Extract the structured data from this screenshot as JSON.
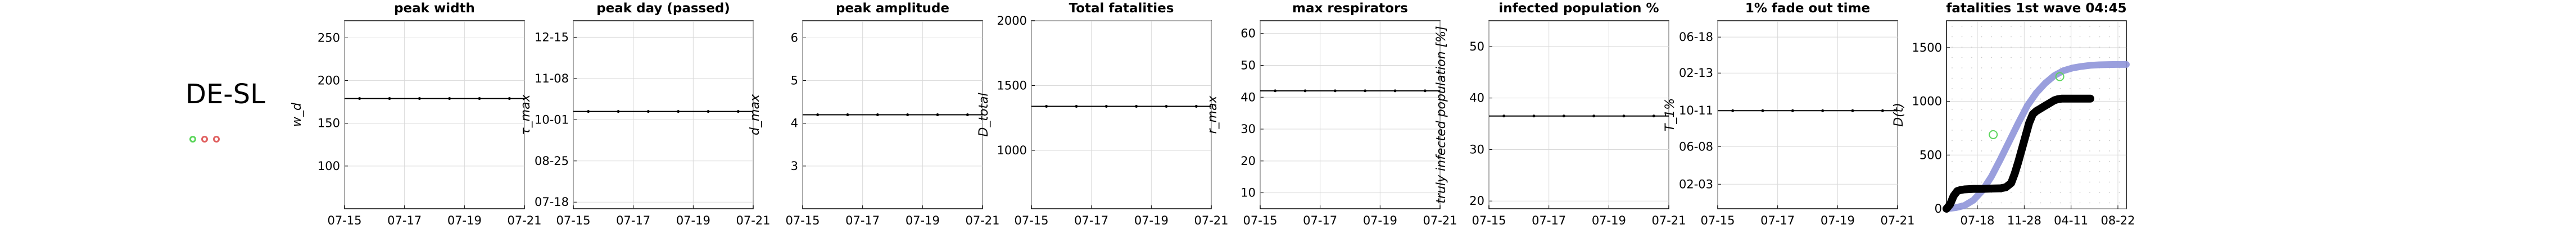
{
  "region": "DE-SL",
  "status_dots": [
    {
      "color": "#5cd65c"
    },
    {
      "color": "#e06060"
    },
    {
      "color": "#e06060"
    }
  ],
  "chart_data": [
    {
      "type": "line",
      "title": "peak width",
      "ylabel": "w_d",
      "x": [
        "07-16",
        "07-17",
        "07-18",
        "07-19",
        "07-20",
        "07-21"
      ],
      "y": [
        179,
        179,
        179,
        179,
        179,
        179
      ],
      "xticks": [
        "07-15",
        "07-17",
        "07-19",
        "07-21"
      ],
      "yticks": [
        {
          "v": 100,
          "label": "100"
        },
        {
          "v": 150,
          "label": "150"
        },
        {
          "v": 200,
          "label": "200"
        },
        {
          "v": 250,
          "label": "250"
        }
      ],
      "ylim": [
        50,
        270
      ]
    },
    {
      "type": "line",
      "title": "peak day (passed)",
      "ylabel": "τ_max",
      "x": [
        "07-16",
        "07-17",
        "07-18",
        "07-19",
        "07-20",
        "07-21"
      ],
      "y": [
        0.55,
        0.55,
        0.55,
        0.55,
        0.55,
        0.55
      ],
      "xticks": [
        "07-15",
        "07-17",
        "07-19",
        "07-21"
      ],
      "yticks": [
        {
          "v": 0,
          "label": "07-18"
        },
        {
          "v": 0.25,
          "label": "08-25"
        },
        {
          "v": 0.5,
          "label": "10-01"
        },
        {
          "v": 0.75,
          "label": "11-08"
        },
        {
          "v": 1,
          "label": "12-15"
        }
      ],
      "ylim": [
        -0.04,
        1.1
      ]
    },
    {
      "type": "line",
      "title": "peak amplitude",
      "ylabel": "d_max",
      "x": [
        "07-16",
        "07-17",
        "07-18",
        "07-19",
        "07-20",
        "07-21"
      ],
      "y": [
        4.2,
        4.2,
        4.2,
        4.2,
        4.2,
        4.2
      ],
      "xticks": [
        "07-15",
        "07-17",
        "07-19",
        "07-21"
      ],
      "yticks": [
        {
          "v": 3,
          "label": "3"
        },
        {
          "v": 4,
          "label": "4"
        },
        {
          "v": 5,
          "label": "5"
        },
        {
          "v": 6,
          "label": "6"
        }
      ],
      "ylim": [
        2,
        6.4
      ]
    },
    {
      "type": "line",
      "title": "Total fatalities",
      "ylabel": "D_total",
      "x": [
        "07-16",
        "07-17",
        "07-18",
        "07-19",
        "07-20",
        "07-21"
      ],
      "y": [
        1340,
        1340,
        1340,
        1340,
        1340,
        1340
      ],
      "xticks": [
        "07-15",
        "07-17",
        "07-19",
        "07-21"
      ],
      "yticks": [
        {
          "v": 1000,
          "label": "1000"
        },
        {
          "v": 1500,
          "label": "1500"
        },
        {
          "v": 2000,
          "label": "2000"
        }
      ],
      "ylim": [
        550,
        2000
      ]
    },
    {
      "type": "line",
      "title": "max respirators",
      "ylabel": "r_max",
      "x": [
        "07-16",
        "07-17",
        "07-18",
        "07-19",
        "07-20",
        "07-21"
      ],
      "y": [
        42,
        42,
        42,
        42,
        42,
        42
      ],
      "xticks": [
        "07-15",
        "07-17",
        "07-19",
        "07-21"
      ],
      "yticks": [
        {
          "v": 10,
          "label": "10"
        },
        {
          "v": 20,
          "label": "20"
        },
        {
          "v": 30,
          "label": "30"
        },
        {
          "v": 40,
          "label": "40"
        },
        {
          "v": 50,
          "label": "50"
        },
        {
          "v": 60,
          "label": "60"
        }
      ],
      "ylim": [
        5,
        64
      ]
    },
    {
      "type": "line",
      "title": "infected population %",
      "ylabel": "truly infected population [%]",
      "x": [
        "07-16",
        "07-17",
        "07-18",
        "07-19",
        "07-20",
        "07-21"
      ],
      "y": [
        36.5,
        36.5,
        36.5,
        36.5,
        36.5,
        36.5
      ],
      "xticks": [
        "07-15",
        "07-17",
        "07-19",
        "07-21"
      ],
      "yticks": [
        {
          "v": 20,
          "label": "20"
        },
        {
          "v": 30,
          "label": "30"
        },
        {
          "v": 40,
          "label": "40"
        },
        {
          "v": 50,
          "label": "50"
        }
      ],
      "ylim": [
        18.5,
        55
      ]
    },
    {
      "type": "line",
      "title": "1% fade out time",
      "ylabel": "T_1%",
      "x": [
        "07-16",
        "07-17",
        "07-18",
        "07-19",
        "07-20",
        "07-21"
      ],
      "y": [
        0.55,
        0.55,
        0.55,
        0.55,
        0.55,
        0.55
      ],
      "xticks": [
        "07-15",
        "07-17",
        "07-19",
        "07-21"
      ],
      "yticks": [
        {
          "v": 0.1,
          "label": "02-03"
        },
        {
          "v": 0.33,
          "label": "06-08"
        },
        {
          "v": 0.55,
          "label": "10-11"
        },
        {
          "v": 0.78,
          "label": "02-13"
        },
        {
          "v": 1,
          "label": "06-18"
        }
      ],
      "ylim": [
        -0.05,
        1.1
      ]
    },
    {
      "type": "line",
      "title": "fatalities 1st wave 04:45",
      "ylabel": "D(t)",
      "xticks": [
        "07-18",
        "11-28",
        "04-11",
        "08-22"
      ],
      "yticks": [
        {
          "v": 0,
          "label": "0"
        },
        {
          "v": 500,
          "label": "500"
        },
        {
          "v": 1000,
          "label": "1000"
        },
        {
          "v": 1500,
          "label": "1500"
        }
      ],
      "ylim": [
        0,
        1750
      ],
      "series": [
        {
          "color": "#8f95d9",
          "x": [
            0.0,
            0.05,
            0.1,
            0.15,
            0.2,
            0.25,
            0.3,
            0.35,
            0.4,
            0.45,
            0.5,
            0.55,
            0.6,
            0.65,
            0.7,
            0.75,
            0.8,
            0.85,
            0.9,
            0.95,
            1.0
          ],
          "y": [
            0,
            10,
            30,
            80,
            170,
            300,
            460,
            630,
            800,
            960,
            1080,
            1170,
            1240,
            1285,
            1310,
            1325,
            1335,
            1340,
            1342,
            1343,
            1343
          ]
        },
        {
          "color": "#000000",
          "x": [
            0.0,
            0.02,
            0.04,
            0.06,
            0.08,
            0.1,
            0.15,
            0.2,
            0.25,
            0.3,
            0.33,
            0.36,
            0.38,
            0.4,
            0.42,
            0.44,
            0.46,
            0.48,
            0.5,
            0.52,
            0.54,
            0.56,
            0.58,
            0.6,
            0.62,
            0.64,
            0.66,
            0.68,
            0.7,
            0.72,
            0.76,
            0.8
          ],
          "y": [
            0,
            40,
            120,
            165,
            175,
            180,
            185,
            185,
            188,
            190,
            200,
            240,
            330,
            440,
            560,
            680,
            800,
            880,
            910,
            930,
            950,
            970,
            990,
            1010,
            1020,
            1025,
            1025,
            1025,
            1025,
            1025,
            1025,
            1025
          ]
        }
      ],
      "markers": [
        {
          "x": 0.26,
          "y": 690,
          "color": "#5cd65c"
        },
        {
          "x": 0.63,
          "y": 1230,
          "color": "#5cd65c"
        }
      ]
    }
  ]
}
